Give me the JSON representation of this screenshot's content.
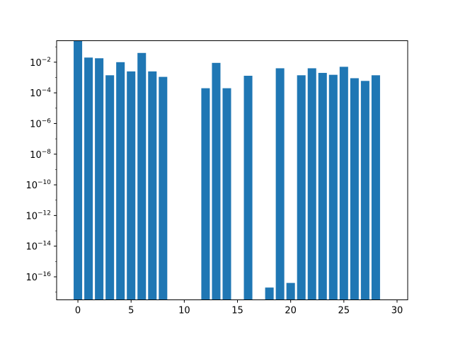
{
  "chart_data": {
    "type": "bar",
    "title": "",
    "xlabel": "",
    "ylabel": "",
    "y_scale": "log",
    "grid": false,
    "color": "#1f77b4",
    "xlim": [
      -2,
      31
    ],
    "ylim_exp": [
      -17.5,
      -0.6
    ],
    "x_ticks": [
      0,
      5,
      10,
      15,
      20,
      25,
      30
    ],
    "y_tick_exponents": [
      -16,
      -14,
      -12,
      -10,
      -8,
      -6,
      -4,
      -2
    ],
    "x": [
      0,
      1,
      2,
      3,
      4,
      5,
      6,
      7,
      8,
      9,
      10,
      11,
      12,
      13,
      14,
      15,
      16,
      17,
      18,
      19,
      20,
      21,
      22,
      23,
      24,
      25,
      26,
      27,
      28
    ],
    "values": [
      0.6,
      0.02,
      0.018,
      0.0014,
      0.01,
      0.0025,
      0.04,
      0.0025,
      0.0011,
      null,
      null,
      null,
      0.0002,
      0.009,
      0.0002,
      null,
      0.0013,
      null,
      2e-17,
      0.004,
      4e-17,
      0.0014,
      0.004,
      0.002,
      0.0015,
      0.005,
      0.0009,
      0.0006,
      0.0014
    ]
  }
}
